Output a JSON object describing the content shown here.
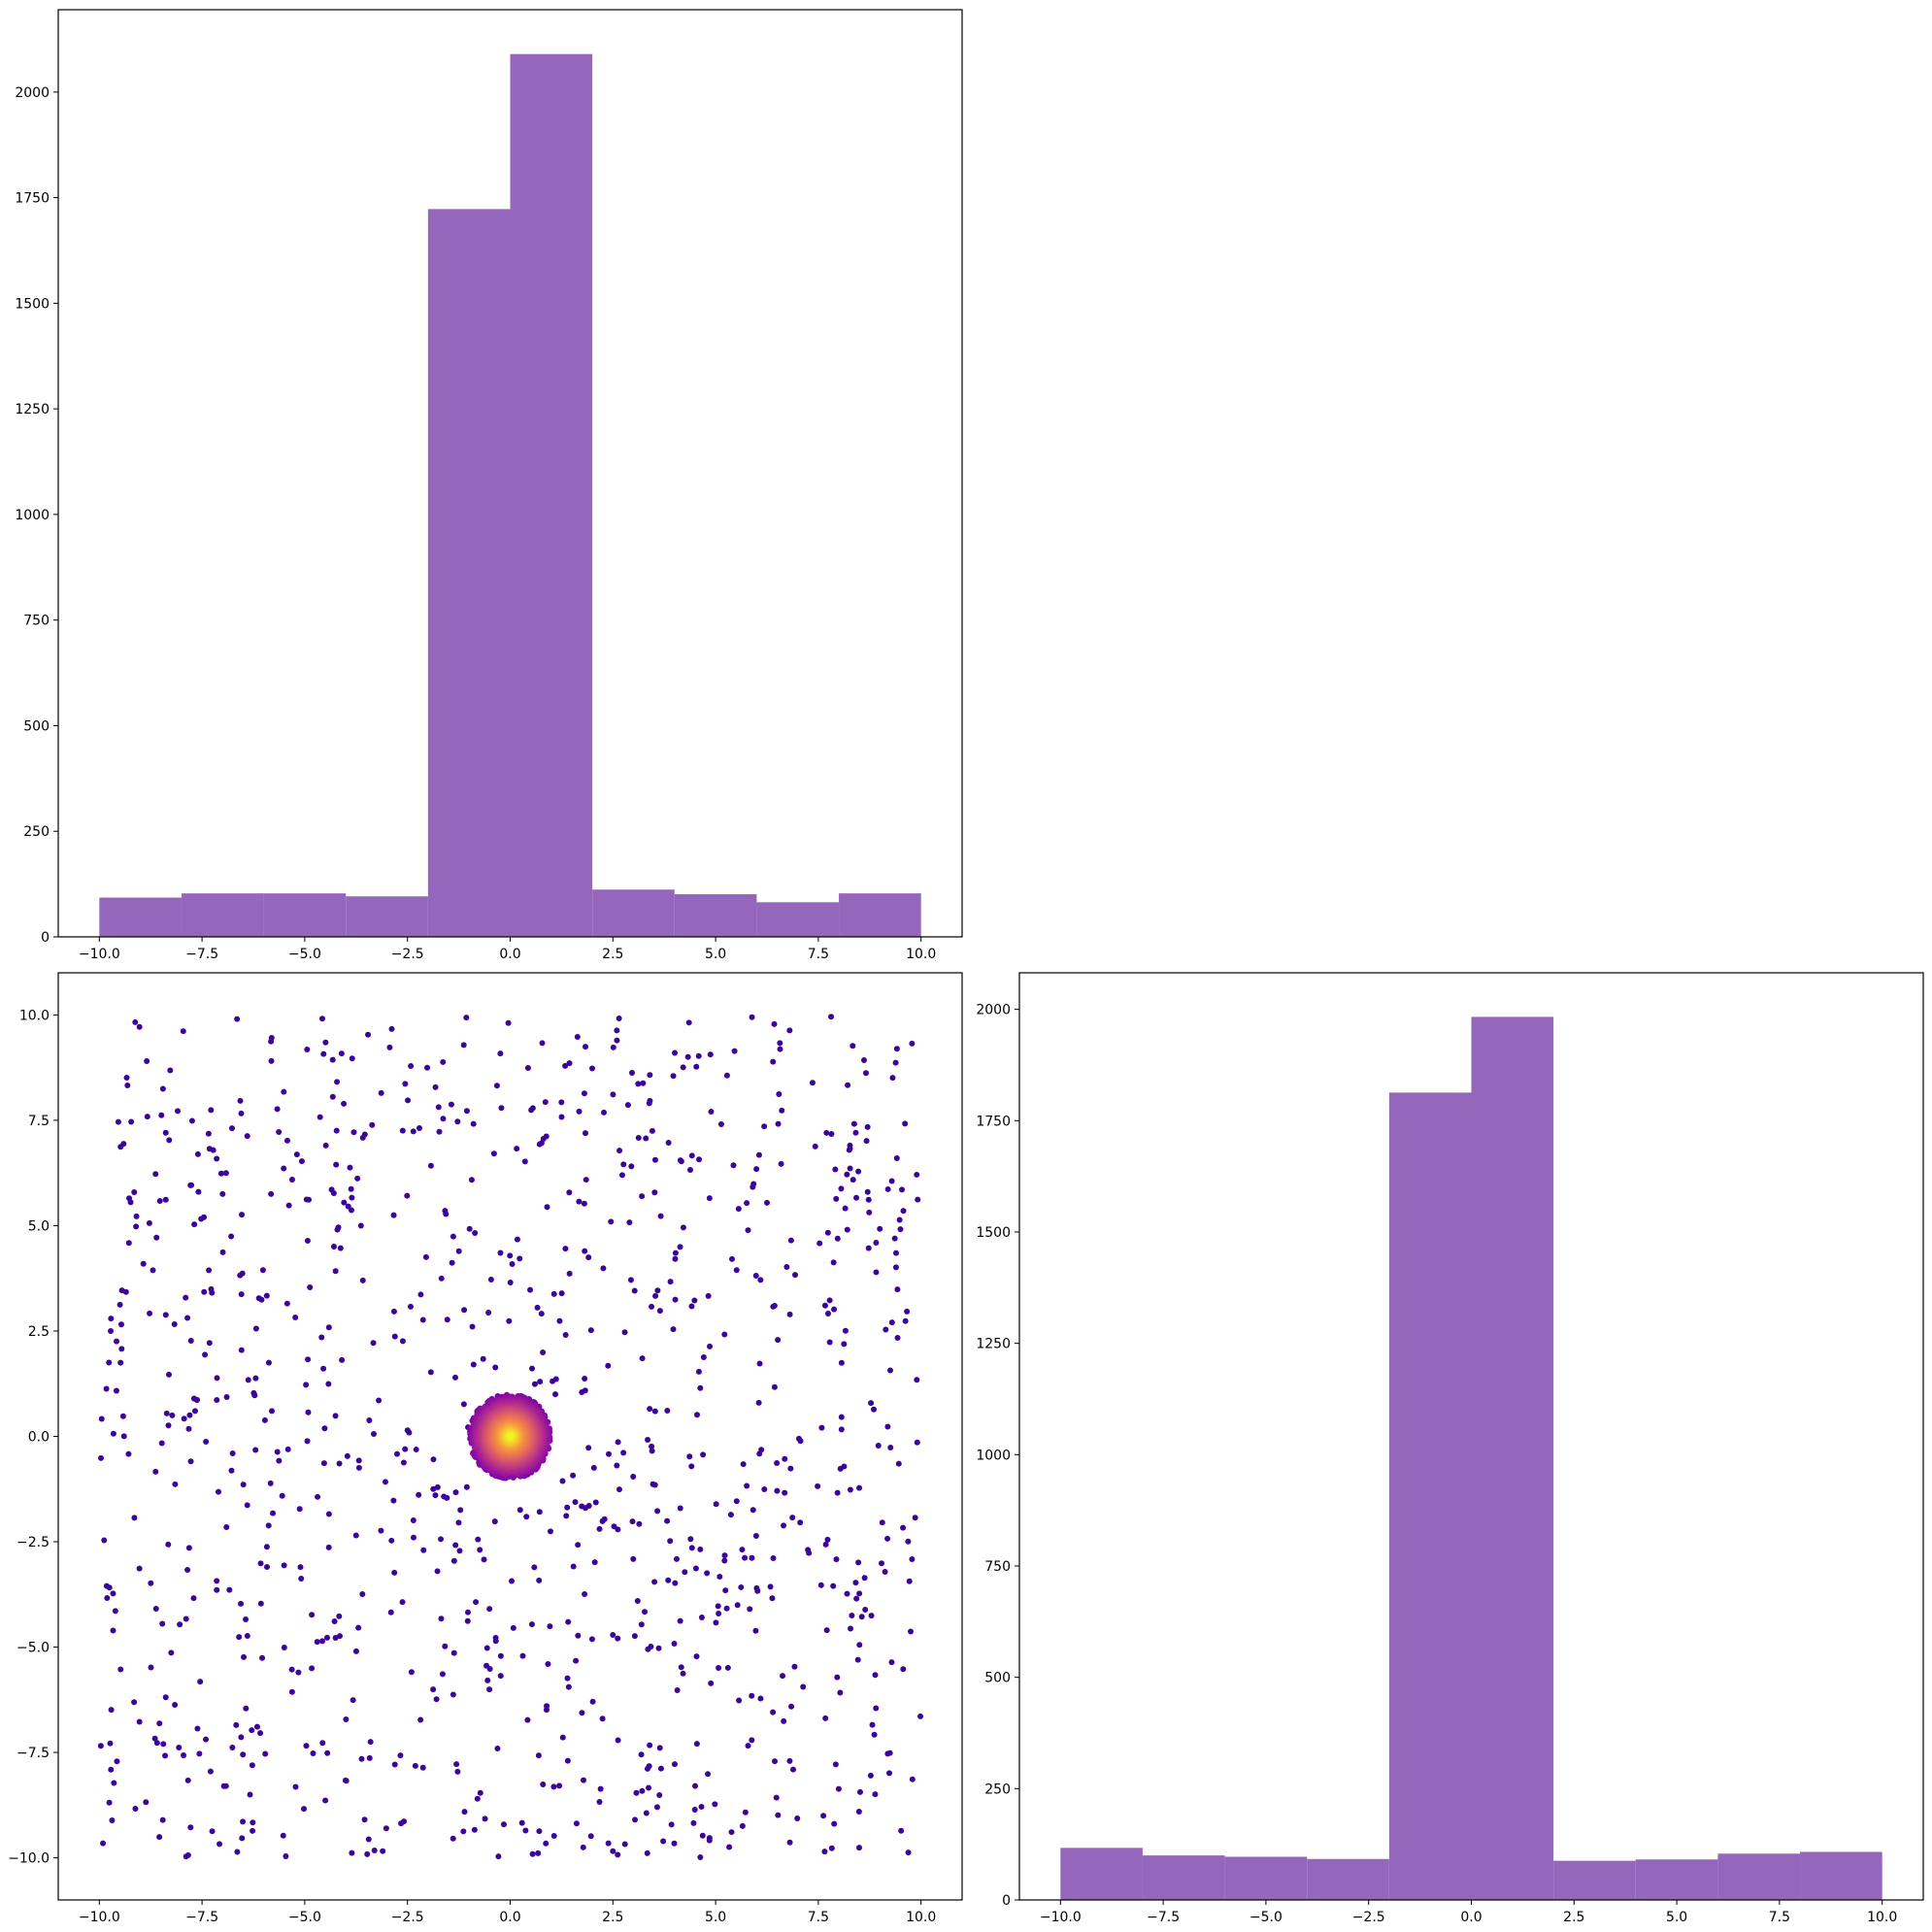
{
  "chart_data": [
    {
      "id": "top-hist",
      "type": "bar",
      "subtype": "histogram",
      "bin_edges": [
        -10,
        -8,
        -6,
        -4,
        -2,
        0,
        2,
        4,
        6,
        8,
        10
      ],
      "values": [
        93,
        103,
        103,
        96,
        1723,
        2090,
        112,
        101,
        82,
        103
      ],
      "color": "#9467bd",
      "xlim": [
        -11,
        11
      ],
      "ylim": [
        0,
        2195
      ],
      "xticks": [
        -10.0,
        -7.5,
        -5.0,
        -2.5,
        0.0,
        2.5,
        5.0,
        7.5,
        10.0
      ],
      "xtick_labels": [
        "−10.0",
        "−7.5",
        "−5.0",
        "−2.5",
        "0.0",
        "2.5",
        "5.0",
        "7.5",
        "10.0"
      ],
      "yticks": [
        0,
        250,
        500,
        750,
        1000,
        1250,
        1500,
        1750,
        2000
      ],
      "ytick_labels": [
        "0",
        "250",
        "500",
        "750",
        "1000",
        "1250",
        "1500",
        "1750",
        "2000"
      ],
      "grid": false
    },
    {
      "id": "scatter",
      "type": "scatter",
      "colormap": "plasma",
      "xlim": [
        -11,
        11
      ],
      "ylim": [
        -11,
        11
      ],
      "xticks": [
        -10.0,
        -7.5,
        -5.0,
        -2.5,
        0.0,
        2.5,
        5.0,
        7.5,
        10.0
      ],
      "xtick_labels": [
        "−10.0",
        "−7.5",
        "−5.0",
        "−2.5",
        "0.0",
        "2.5",
        "5.0",
        "7.5",
        "10.0"
      ],
      "yticks": [
        -10.0,
        -7.5,
        -5.0,
        -2.5,
        0.0,
        2.5,
        5.0,
        7.5,
        10.0
      ],
      "ytick_labels": [
        "−10.0",
        "−7.5",
        "−5.0",
        "−2.5",
        "0.0",
        "2.5",
        "5.0",
        "7.5",
        "10.0"
      ],
      "background_points": {
        "count": 1000,
        "x_range": [
          -10,
          10
        ],
        "y_range": [
          -10,
          10
        ],
        "color": "#3d049b"
      },
      "cluster": {
        "center": [
          0,
          0
        ],
        "radius": 1.0,
        "count": 4000,
        "center_color": "#f0f921",
        "edge_color": "#7e03a8"
      },
      "grid": false
    },
    {
      "id": "right-hist",
      "type": "bar",
      "subtype": "histogram",
      "bin_edges": [
        -10,
        -8,
        -6,
        -4,
        -2,
        0,
        2,
        4,
        6,
        8,
        10
      ],
      "values": [
        117,
        100,
        97,
        92,
        1813,
        1983,
        88,
        91,
        104,
        108
      ],
      "color": "#9467bd",
      "xlim": [
        -11,
        11
      ],
      "ylim": [
        0,
        2082
      ],
      "xticks": [
        -10.0,
        -7.5,
        -5.0,
        -2.5,
        0.0,
        2.5,
        5.0,
        7.5,
        10.0
      ],
      "xtick_labels": [
        "−10.0",
        "−7.5",
        "−5.0",
        "−2.5",
        "0.0",
        "2.5",
        "5.0",
        "7.5",
        "10.0"
      ],
      "yticks": [
        0,
        250,
        500,
        750,
        1000,
        1250,
        1500,
        1750,
        2000
      ],
      "ytick_labels": [
        "0",
        "250",
        "500",
        "750",
        "1000",
        "1250",
        "1500",
        "1750",
        "2000"
      ],
      "grid": false
    }
  ]
}
